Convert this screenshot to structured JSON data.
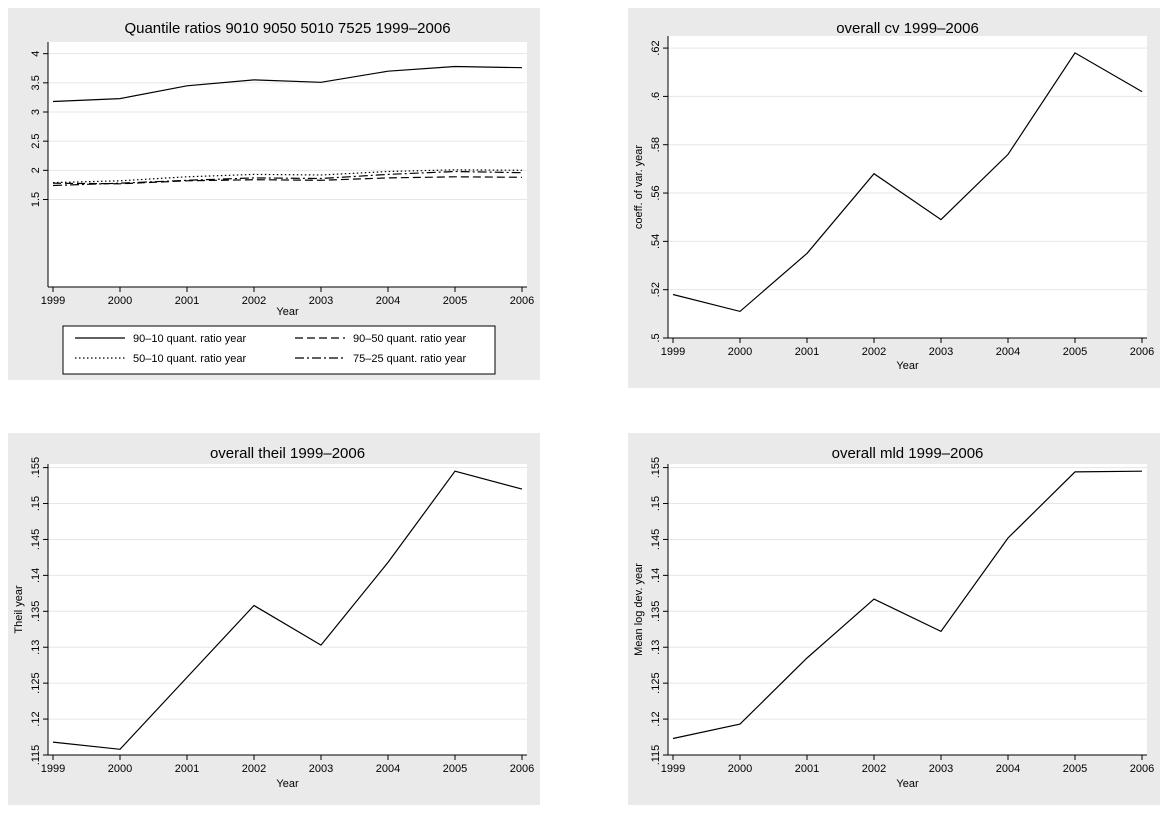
{
  "chart_data": [
    {
      "id": "quantile",
      "type": "line",
      "title": "Quantile ratios 9010 9050 5010 7525 1999–2006",
      "xlabel": "Year",
      "ylabel": "",
      "x": [
        1999,
        2000,
        2001,
        2002,
        2003,
        2004,
        2005,
        2006
      ],
      "xticks": [
        "1999",
        "2000",
        "2001",
        "2002",
        "2003",
        "2004",
        "2005",
        "2006"
      ],
      "ylim": [
        0,
        4.2
      ],
      "yticks": [
        1.5,
        2,
        2.5,
        3,
        3.5,
        4
      ],
      "ytick_labels": [
        "1.5",
        "2",
        "2.5",
        "3",
        "3.5",
        "4"
      ],
      "grid": true,
      "legend": "bottom",
      "series": [
        {
          "name": "90–10 quant. ratio year",
          "dash": "",
          "values": [
            3.18,
            3.23,
            3.45,
            3.55,
            3.51,
            3.7,
            3.78,
            3.76
          ]
        },
        {
          "name": "90–50 quant. ratio year",
          "dash": "8,4",
          "values": [
            1.78,
            1.77,
            1.82,
            1.84,
            1.83,
            1.87,
            1.89,
            1.88
          ]
        },
        {
          "name": "50–10 quant. ratio year",
          "dash": "1.5,2.5",
          "values": [
            1.79,
            1.82,
            1.89,
            1.93,
            1.92,
            1.98,
            2.01,
            2.0
          ]
        },
        {
          "name": "75–25 quant. ratio year",
          "dash": "9,3,2,3",
          "values": [
            1.74,
            1.78,
            1.83,
            1.87,
            1.86,
            1.93,
            1.98,
            1.96
          ]
        }
      ]
    },
    {
      "id": "cv",
      "type": "line",
      "title": "overall cv 1999–2006",
      "xlabel": "Year",
      "ylabel": "coeff. of var. year",
      "x": [
        1999,
        2000,
        2001,
        2002,
        2003,
        2004,
        2005,
        2006
      ],
      "xticks": [
        "1999",
        "2000",
        "2001",
        "2002",
        "2003",
        "2004",
        "2005",
        "2006"
      ],
      "ylim": [
        0.5,
        0.625
      ],
      "yticks": [
        0.5,
        0.52,
        0.54,
        0.56,
        0.58,
        0.6,
        0.62
      ],
      "ytick_labels": [
        ".5",
        ".52",
        ".54",
        ".56",
        ".58",
        ".6",
        ".62"
      ],
      "grid": true,
      "series": [
        {
          "name": "",
          "dash": "",
          "values": [
            0.518,
            0.511,
            0.535,
            0.568,
            0.549,
            0.576,
            0.618,
            0.602
          ]
        }
      ]
    },
    {
      "id": "theil",
      "type": "line",
      "title": "overall theil 1999–2006",
      "xlabel": "Year",
      "ylabel": "Theil year",
      "x": [
        1999,
        2000,
        2001,
        2002,
        2003,
        2004,
        2005,
        2006
      ],
      "xticks": [
        "1999",
        "2000",
        "2001",
        "2002",
        "2003",
        "2004",
        "2005",
        "2006"
      ],
      "ylim": [
        0.115,
        0.1555
      ],
      "yticks": [
        0.115,
        0.12,
        0.125,
        0.13,
        0.135,
        0.14,
        0.145,
        0.15,
        0.155
      ],
      "ytick_labels": [
        ".115",
        ".12",
        ".125",
        ".13",
        ".135",
        ".14",
        ".145",
        ".15",
        ".155"
      ],
      "grid": true,
      "series": [
        {
          "name": "",
          "dash": "",
          "values": [
            0.1168,
            0.1158,
            0.1258,
            0.1358,
            0.1303,
            0.1418,
            0.1545,
            0.152
          ]
        }
      ]
    },
    {
      "id": "mld",
      "type": "line",
      "title": "overall mld 1999–2006",
      "xlabel": "Year",
      "ylabel": "Mean log dev. year",
      "x": [
        1999,
        2000,
        2001,
        2002,
        2003,
        2004,
        2005,
        2006
      ],
      "xticks": [
        "1999",
        "2000",
        "2001",
        "2002",
        "2003",
        "2004",
        "2005",
        "2006"
      ],
      "ylim": [
        0.115,
        0.1555
      ],
      "yticks": [
        0.115,
        0.12,
        0.125,
        0.13,
        0.135,
        0.14,
        0.145,
        0.15,
        0.155
      ],
      "ytick_labels": [
        ".115",
        ".12",
        ".125",
        ".13",
        ".135",
        ".14",
        ".145",
        ".15",
        ".155"
      ],
      "grid": true,
      "series": [
        {
          "name": "",
          "dash": "",
          "values": [
            0.1173,
            0.1193,
            0.1285,
            0.1367,
            0.1322,
            0.1452,
            0.1544,
            0.1545
          ]
        }
      ]
    }
  ]
}
